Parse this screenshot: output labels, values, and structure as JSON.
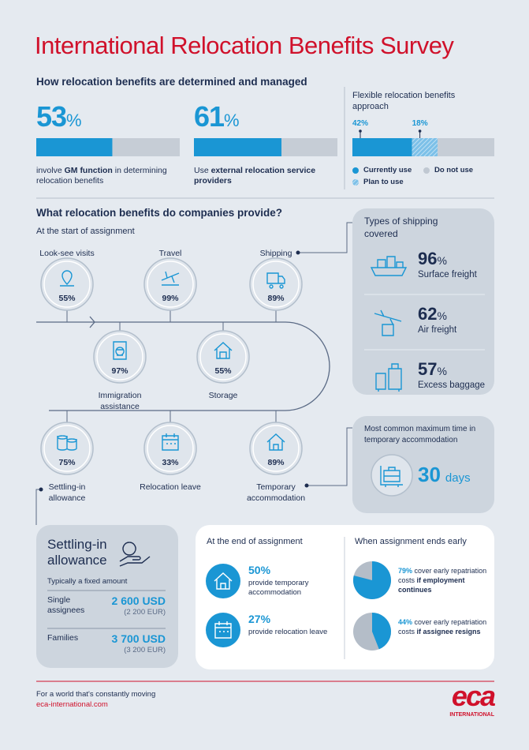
{
  "title": "International Relocation Benefits Survey",
  "management": {
    "heading": "How relocation benefits are determined and managed",
    "unit": "%",
    "stats": [
      {
        "value": 53,
        "text": "involve ",
        "bold": "GM function",
        "text_after": " in determining relocation benefits"
      },
      {
        "value": 61,
        "text": "Use ",
        "bold": "external relocation service providers"
      }
    ],
    "flexible": {
      "title": "Flexible relocation benefits approach",
      "segments": [
        {
          "name": "Currently use",
          "value": 42,
          "value_label": "42%"
        },
        {
          "name": "Plan to use",
          "value": 18,
          "value_label": "18%"
        }
      ],
      "other": "Do not use"
    }
  },
  "benefits": {
    "heading": "What relocation benefits do companies provide?",
    "subheading": "At the start of assignment",
    "unit": "%",
    "items": [
      {
        "label": "Look-see visits",
        "value": 55
      },
      {
        "label": "Travel",
        "value": 99
      },
      {
        "label": "Shipping",
        "value": 89
      },
      {
        "label": "Immigration assistance",
        "value": 97
      },
      {
        "label": "Storage",
        "value": 55
      },
      {
        "label": "Settling-in allowance",
        "value": 75
      },
      {
        "label": "Relocation leave",
        "value": 33
      },
      {
        "label": "Temporary accommodation",
        "value": 89
      }
    ],
    "shipping": {
      "title": "Types of shipping covered",
      "unit": "%",
      "items": [
        {
          "label": "Surface freight",
          "value": 96
        },
        {
          "label": "Air freight",
          "value": 62
        },
        {
          "label": "Excess baggage",
          "value": 57
        }
      ]
    },
    "temporary": {
      "title": "Most common maximum time in temporary accommodation",
      "value": 30,
      "unit": "days"
    },
    "settling": {
      "title": "Settling-in allowance",
      "note": "Typically a fixed amount",
      "rows": [
        {
          "label": "Single assignees",
          "usd": "2 600 USD",
          "eur": "(2 200 EUR)"
        },
        {
          "label": "Families",
          "usd": "3 700 USD",
          "eur": "(3 200 EUR)"
        }
      ]
    },
    "end": {
      "title": "At the end of assignment",
      "unit": "%",
      "items": [
        {
          "value": 50,
          "text": "provide temporary accommodation"
        },
        {
          "value": 27,
          "text": "provide relocation leave"
        }
      ]
    },
    "early": {
      "title": "When assignment ends early",
      "unit": "%",
      "items": [
        {
          "value": 79,
          "text": "cover early repatriation costs ",
          "bold": "if employment continues"
        },
        {
          "value": 44,
          "text": "cover early repatriation costs ",
          "bold": "if assignee resigns"
        }
      ]
    }
  },
  "footer": {
    "tagline": "For a world that's constantly moving",
    "url": "eca-international.com",
    "logo": "eca",
    "logo_sub": "INTERNATIONAL"
  }
}
